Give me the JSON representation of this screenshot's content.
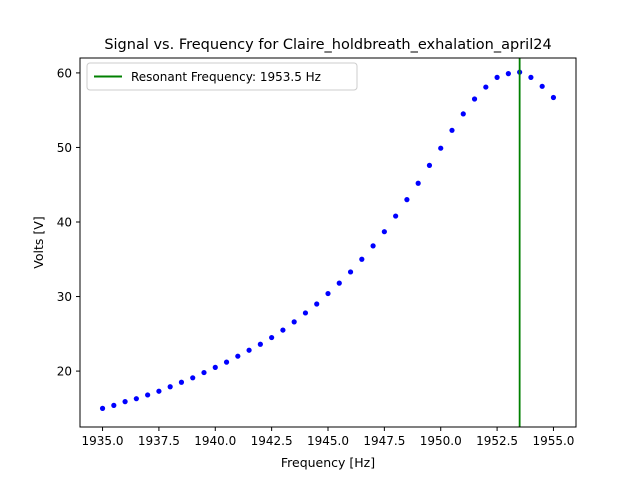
{
  "chart_data": {
    "type": "scatter",
    "title": "Signal vs. Frequency for Claire_holdbreath_exhalation_april24",
    "xlabel": "Frequency [Hz]",
    "ylabel": "Volts [V]",
    "xlim": [
      1934.0,
      1956.0
    ],
    "ylim": [
      12.5,
      62.0
    ],
    "xticks": [
      1935.0,
      1937.5,
      1940.0,
      1942.5,
      1945.0,
      1947.5,
      1950.0,
      1952.5,
      1955.0
    ],
    "xtick_labels": [
      "1935.0",
      "1937.5",
      "1940.0",
      "1942.5",
      "1945.0",
      "1947.5",
      "1950.0",
      "1952.5",
      "1955.0"
    ],
    "yticks": [
      20,
      30,
      40,
      50,
      60
    ],
    "ytick_labels": [
      "20",
      "30",
      "40",
      "50",
      "60"
    ],
    "grid": false,
    "legend_position": "top-left",
    "series": [
      {
        "color": "#0000ff",
        "marker": "dot",
        "x": [
          1935.0,
          1935.5,
          1936.0,
          1936.5,
          1937.0,
          1937.5,
          1938.0,
          1938.5,
          1939.0,
          1939.5,
          1940.0,
          1940.5,
          1941.0,
          1941.5,
          1942.0,
          1942.5,
          1943.0,
          1943.5,
          1944.0,
          1944.5,
          1945.0,
          1945.5,
          1946.0,
          1946.5,
          1947.0,
          1947.5,
          1948.0,
          1948.5,
          1949.0,
          1949.5,
          1950.0,
          1950.5,
          1951.0,
          1951.5,
          1952.0,
          1952.5,
          1953.0,
          1953.5,
          1954.0,
          1954.5,
          1955.0
        ],
        "y": [
          15.0,
          15.4,
          15.9,
          16.3,
          16.8,
          17.3,
          17.9,
          18.5,
          19.1,
          19.8,
          20.5,
          21.2,
          22.0,
          22.8,
          23.6,
          24.5,
          25.5,
          26.6,
          27.8,
          29.0,
          30.4,
          31.8,
          33.3,
          35.0,
          36.8,
          38.7,
          40.8,
          43.0,
          45.2,
          47.6,
          49.9,
          52.3,
          54.5,
          56.5,
          58.1,
          59.4,
          59.9,
          60.1,
          59.4,
          58.2,
          56.7
        ]
      }
    ],
    "vlines": [
      {
        "label": "Resonant Frequency: 1953.5 Hz",
        "x": 1953.5,
        "color": "#008000"
      }
    ]
  }
}
